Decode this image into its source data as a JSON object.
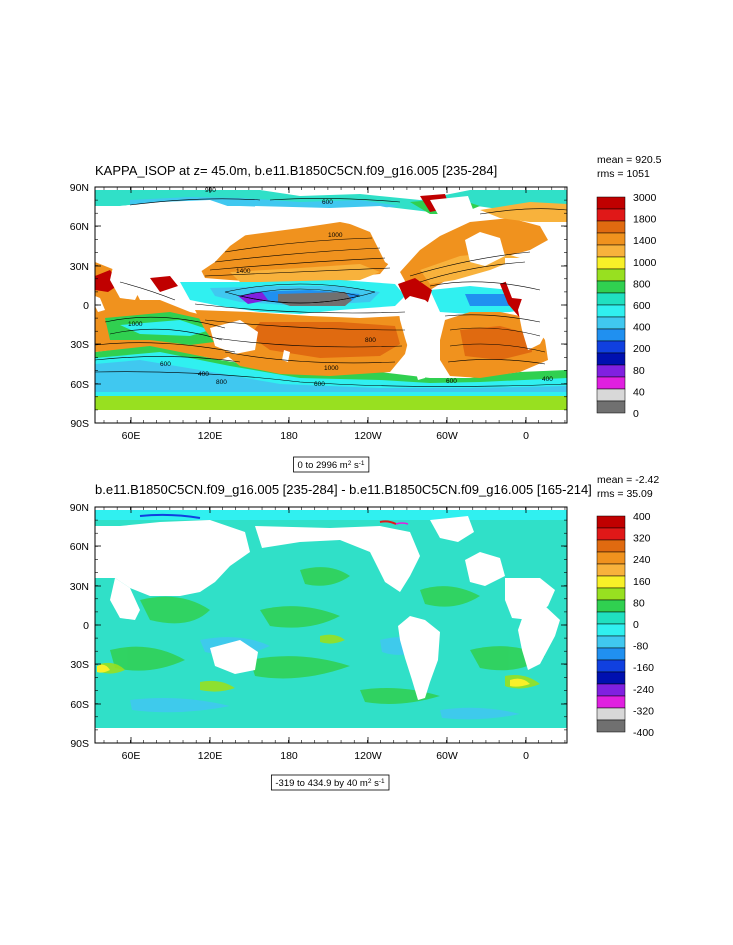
{
  "panels": [
    {
      "title": "KAPPA_ISOP at z=  45.0m, b.e11.B1850C5CN.f09_g16.005 [235-284]",
      "mean": "mean = 920.5",
      "rms": "rms = 1051",
      "range_label": "0 to 2996 m",
      "range_unit_sup": "2",
      "range_unit_suffix": " s",
      "range_unit_sup2": "-1",
      "lat_ticks": [
        "90N",
        "60N",
        "30N",
        "0",
        "30S",
        "60S",
        "90S"
      ],
      "lon_ticks": [
        "60E",
        "120E",
        "180",
        "120W",
        "60W",
        "0"
      ],
      "colorbar": {
        "labels": [
          "3000",
          "1800",
          "1400",
          "1000",
          "800",
          "600",
          "400",
          "200",
          "80",
          "40",
          "0"
        ],
        "colors": [
          "#c00000",
          "#e01818",
          "#e06a10",
          "#f0921e",
          "#f8b23c",
          "#f8f028",
          "#98e020",
          "#30d050",
          "#20e0c0",
          "#30f0f0",
          "#40c8f0",
          "#2090f0",
          "#1040e0",
          "#0010b0",
          "#8020e0",
          "#e020e0",
          "#d8d8d8",
          "#707070"
        ]
      },
      "contour_labels": [
        "900",
        "600",
        "1000",
        "1400",
        "1000",
        "400",
        "600",
        "800",
        "600",
        "1000",
        "600",
        "800",
        "400"
      ]
    },
    {
      "title": "b.e11.B1850C5CN.f09_g16.005 [235-284] - b.e11.B1850C5CN.f09_g16.005 [165-214]",
      "mean": "mean = -2.42",
      "rms": "rms = 35.09",
      "range_label": "-319 to 434.9 by 40 m",
      "range_unit_sup": "2",
      "range_unit_suffix": " s",
      "range_unit_sup2": "-1",
      "lat_ticks": [
        "90N",
        "60N",
        "30N",
        "0",
        "30S",
        "60S",
        "90S"
      ],
      "lon_ticks": [
        "60E",
        "120E",
        "180",
        "120W",
        "60W",
        "0"
      ],
      "colorbar": {
        "labels": [
          "400",
          "320",
          "240",
          "160",
          "80",
          "0",
          "-80",
          "-160",
          "-240",
          "-320",
          "-400"
        ],
        "colors": [
          "#c00000",
          "#e01818",
          "#e06a10",
          "#f0921e",
          "#f8b23c",
          "#f8f028",
          "#98e020",
          "#30d050",
          "#20e0c0",
          "#30f0f0",
          "#40c8f0",
          "#2090f0",
          "#1040e0",
          "#0010b0",
          "#8020e0",
          "#e020e0",
          "#d8d8d8",
          "#707070"
        ]
      }
    }
  ]
}
